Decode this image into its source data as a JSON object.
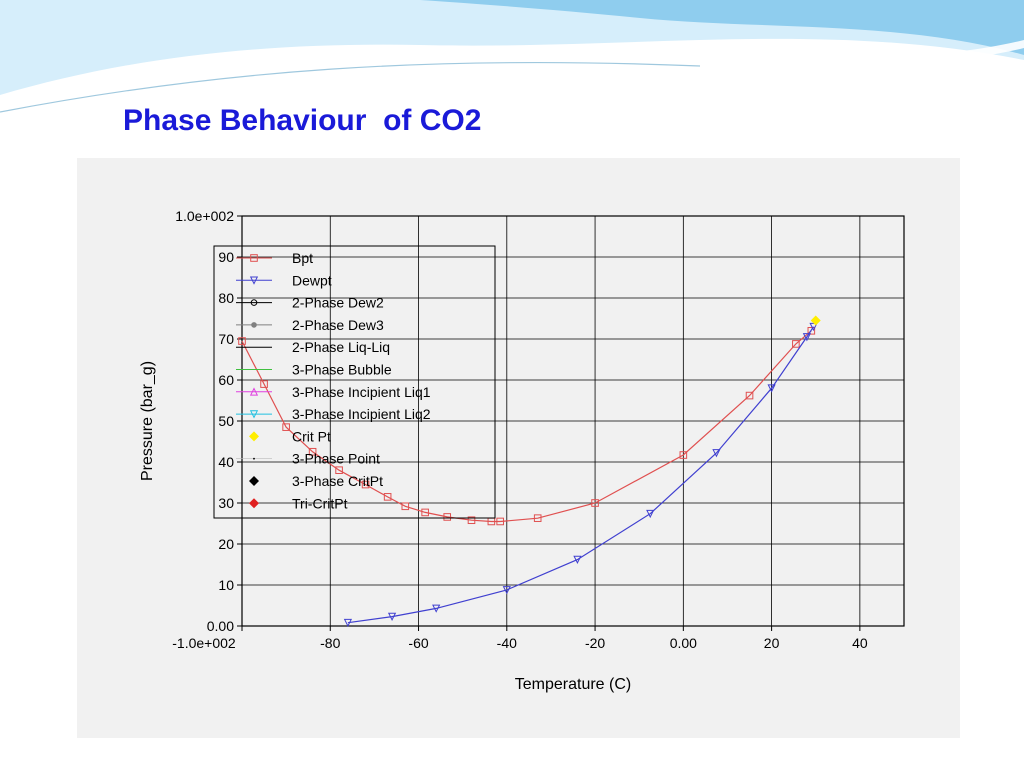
{
  "slide": {
    "title": "Phase Behaviour  of CO2",
    "colors": {
      "title": "#1a1ad8",
      "panel": "#f1f1f1",
      "wave_light": "#d6eefb",
      "wave_dark": "#7ec4ea"
    }
  },
  "chart_data": {
    "type": "line",
    "title": "",
    "xlabel": "Temperature (C)",
    "ylabel": "Pressure (bar_g)",
    "xlim": [
      -100,
      50
    ],
    "ylim": [
      0,
      100
    ],
    "x_ticks": [
      {
        "value": -100,
        "label": "-1.0e+002"
      },
      {
        "value": -80,
        "label": "-80"
      },
      {
        "value": -60,
        "label": "-60"
      },
      {
        "value": -40,
        "label": "-40"
      },
      {
        "value": -20,
        "label": "-20"
      },
      {
        "value": 0,
        "label": "0.00"
      },
      {
        "value": 20,
        "label": "20"
      },
      {
        "value": 40,
        "label": "40"
      }
    ],
    "y_ticks": [
      {
        "value": 0,
        "label": "0.00"
      },
      {
        "value": 10,
        "label": "10"
      },
      {
        "value": 20,
        "label": "20"
      },
      {
        "value": 30,
        "label": "30"
      },
      {
        "value": 40,
        "label": "40"
      },
      {
        "value": 50,
        "label": "50"
      },
      {
        "value": 60,
        "label": "60"
      },
      {
        "value": 70,
        "label": "70"
      },
      {
        "value": 80,
        "label": "80"
      },
      {
        "value": 90,
        "label": "90"
      },
      {
        "value": 100,
        "label": "1.0e+002"
      }
    ],
    "grid": true,
    "legend_position": "top-left",
    "series": [
      {
        "name": "Bpt",
        "color": "#e05050",
        "marker": "square",
        "points": [
          [
            -100,
            69.5
          ],
          [
            -95,
            59
          ],
          [
            -90,
            48.5
          ],
          [
            -84,
            42.5
          ],
          [
            -78,
            38
          ],
          [
            -72,
            34.5
          ],
          [
            -67,
            31.5
          ],
          [
            -63,
            29.2
          ],
          [
            -58.5,
            27.7
          ],
          [
            -53.5,
            26.6
          ],
          [
            -48,
            25.8
          ],
          [
            -43.5,
            25.5
          ],
          [
            -41.5,
            25.5
          ],
          [
            -33,
            26.3
          ],
          [
            -20,
            30
          ],
          [
            0,
            41.7
          ],
          [
            15,
            56.2
          ],
          [
            25.5,
            68.8
          ],
          [
            29,
            72
          ]
        ]
      },
      {
        "name": "Dewpt",
        "color": "#4040d0",
        "marker": "triangle-down",
        "points": [
          [
            -76,
            0.8
          ],
          [
            -66,
            2.3
          ],
          [
            -56,
            4.3
          ],
          [
            -40,
            8.8
          ],
          [
            -24,
            16.2
          ],
          [
            -7.5,
            27.4
          ],
          [
            7.5,
            42.2
          ],
          [
            20,
            58
          ],
          [
            28,
            70.5
          ],
          [
            29.5,
            73
          ]
        ]
      },
      {
        "name": "2-Phase Dew2",
        "color": "#000000",
        "marker": "circle-open",
        "points": []
      },
      {
        "name": "2-Phase Dew3",
        "color": "#808080",
        "marker": "circle",
        "points": []
      },
      {
        "name": "2-Phase Liq-Liq",
        "color": "#000000",
        "marker": "none",
        "points": []
      },
      {
        "name": "3-Phase Bubble",
        "color": "#40c040",
        "marker": "none",
        "points": []
      },
      {
        "name": "3-Phase Incipient Liq1",
        "color": "#e040e0",
        "marker": "triangle",
        "points": []
      },
      {
        "name": "3-Phase Incipient Liq2",
        "color": "#20c0e0",
        "marker": "triangle-down",
        "points": []
      },
      {
        "name": "Crit Pt",
        "color": "#ffee00",
        "marker": "diamond",
        "points": [
          [
            30,
            74.5
          ]
        ]
      },
      {
        "name": "3-Phase Point",
        "color": "#000000",
        "marker": "dot",
        "points": []
      },
      {
        "name": "3-Phase CritPt",
        "color": "#000000",
        "marker": "diamond",
        "points": []
      },
      {
        "name": "Tri-CritPt",
        "color": "#e02020",
        "marker": "diamond",
        "points": []
      }
    ]
  }
}
